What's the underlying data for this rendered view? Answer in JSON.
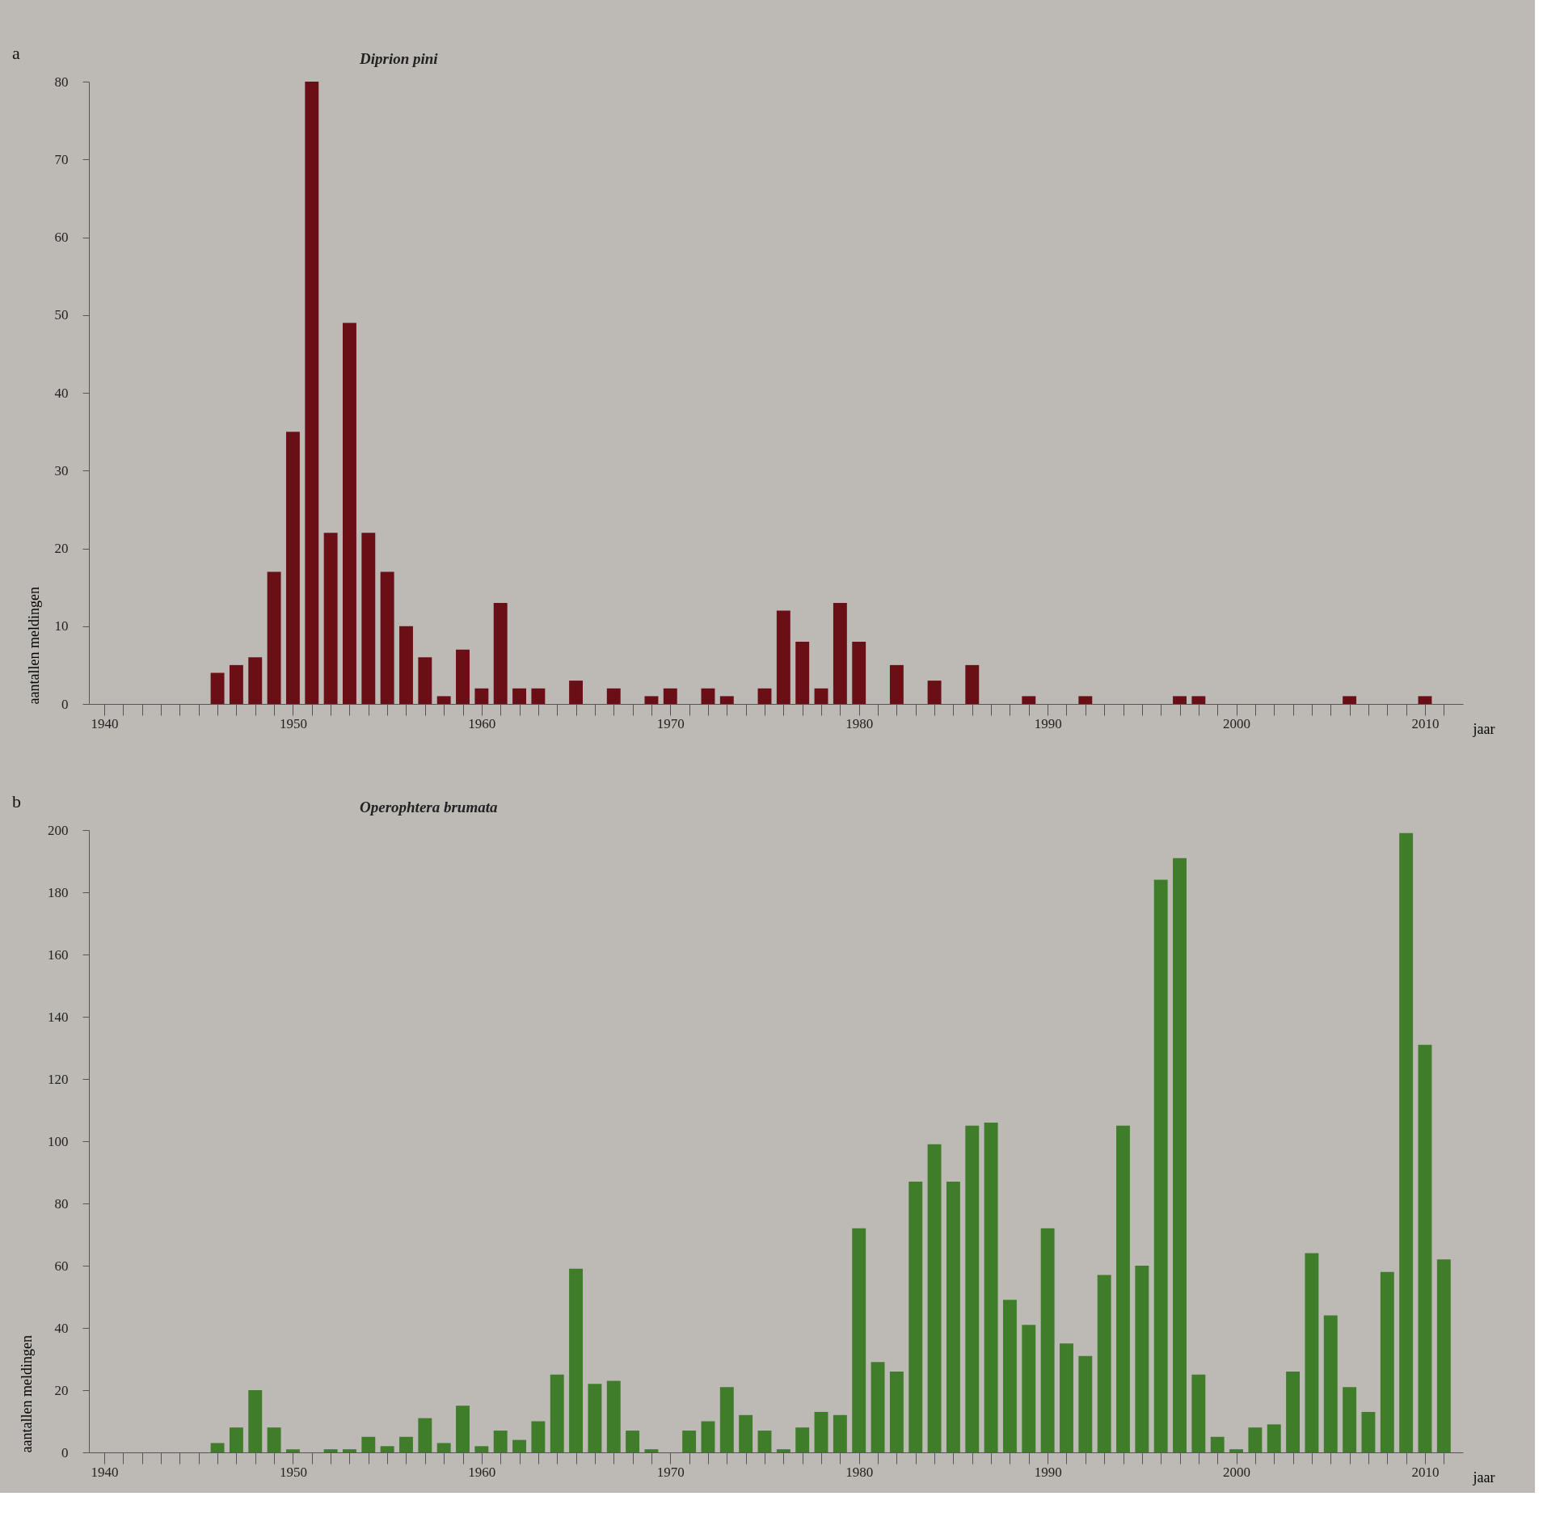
{
  "chart_data": [
    {
      "type": "bar",
      "title": "Diprion pini",
      "xlabel": "jaar",
      "ylabel": "aantallen meldingen",
      "annotations": [
        "a"
      ],
      "color": "#6b0f16",
      "grid": false,
      "x": [
        1946,
        1947,
        1948,
        1949,
        1950,
        1951,
        1952,
        1953,
        1954,
        1955,
        1956,
        1957,
        1958,
        1959,
        1960,
        1961,
        1962,
        1963,
        1965,
        1967,
        1969,
        1970,
        1972,
        1973,
        1975,
        1976,
        1977,
        1978,
        1979,
        1980,
        1982,
        1984,
        1986,
        1989,
        1992,
        1997,
        1998,
        2006,
        2010
      ],
      "values": [
        4,
        5,
        6,
        17,
        35,
        80,
        22,
        49,
        22,
        17,
        10,
        6,
        1,
        7,
        2,
        13,
        2,
        2,
        3,
        2,
        1,
        2,
        2,
        1,
        2,
        12,
        8,
        2,
        13,
        8,
        5,
        3,
        5,
        1,
        1,
        1,
        1,
        1,
        1
      ],
      "xlim": [
        1939.4,
        2011.8
      ],
      "ylim": [
        0,
        80
      ],
      "yticks": [
        0,
        10,
        20,
        30,
        40,
        50,
        60,
        70,
        80
      ],
      "xticks": [
        1940,
        {
          "value": 1941,
          "label": null
        },
        {
          "value": 1942,
          "label": null
        },
        {
          "value": 1943,
          "label": null
        },
        {
          "value": 1944,
          "label": null
        },
        {
          "value": 1945,
          "label": null
        },
        {
          "value": 1946,
          "label": null
        },
        {
          "value": 1947,
          "label": null
        },
        {
          "value": 1948,
          "label": null
        },
        {
          "value": 1949,
          "label": null
        },
        1950,
        {
          "value": 1951,
          "label": null
        },
        {
          "value": 1952,
          "label": null
        },
        {
          "value": 1953,
          "label": null
        },
        {
          "value": 1954,
          "label": null
        },
        {
          "value": 1955,
          "label": null
        },
        {
          "value": 1956,
          "label": null
        },
        {
          "value": 1957,
          "label": null
        },
        {
          "value": 1958,
          "label": null
        },
        {
          "value": 1959,
          "label": null
        },
        1960,
        {
          "value": 1961,
          "label": null
        },
        {
          "value": 1962,
          "label": null
        },
        {
          "value": 1963,
          "label": null
        },
        {
          "value": 1964,
          "label": null
        },
        {
          "value": 1965,
          "label": null
        },
        {
          "value": 1966,
          "label": null
        },
        {
          "value": 1967,
          "label": null
        },
        {
          "value": 1968,
          "label": null
        },
        {
          "value": 1969,
          "label": null
        },
        1970,
        {
          "value": 1971,
          "label": null
        },
        {
          "value": 1972,
          "label": null
        },
        {
          "value": 1973,
          "label": null
        },
        {
          "value": 1974,
          "label": null
        },
        {
          "value": 1975,
          "label": null
        },
        {
          "value": 1976,
          "label": null
        },
        {
          "value": 1977,
          "label": null
        },
        {
          "value": 1978,
          "label": null
        },
        {
          "value": 1979,
          "label": null
        },
        1980,
        {
          "value": 1981,
          "label": null
        },
        {
          "value": 1982,
          "label": null
        },
        {
          "value": 1983,
          "label": null
        },
        {
          "value": 1984,
          "label": null
        },
        {
          "value": 1985,
          "label": null
        },
        {
          "value": 1986,
          "label": null
        },
        {
          "value": 1987,
          "label": null
        },
        {
          "value": 1988,
          "label": null
        },
        {
          "value": 1989,
          "label": null
        },
        1990,
        {
          "value": 1991,
          "label": null
        },
        {
          "value": 1992,
          "label": null
        },
        {
          "value": 1993,
          "label": null
        },
        {
          "value": 1994,
          "label": null
        },
        {
          "value": 1995,
          "label": null
        },
        {
          "value": 1996,
          "label": null
        },
        {
          "value": 1997,
          "label": null
        },
        {
          "value": 1998,
          "label": null
        },
        {
          "value": 1999,
          "label": null
        },
        2000,
        {
          "value": 2001,
          "label": null
        },
        {
          "value": 2002,
          "label": null
        },
        {
          "value": 2003,
          "label": null
        },
        {
          "value": 2004,
          "label": null
        },
        {
          "value": 2005,
          "label": null
        },
        {
          "value": 2006,
          "label": null
        },
        {
          "value": 2007,
          "label": null
        },
        {
          "value": 2008,
          "label": null
        },
        {
          "value": 2009,
          "label": null
        },
        2010,
        {
          "value": 2011,
          "label": null
        }
      ]
    },
    {
      "type": "bar",
      "title": "Operophtera brumata",
      "xlabel": "jaar",
      "ylabel": "aantallen meldingen",
      "annotations": [
        "b"
      ],
      "color": "#3f7d2a",
      "grid": false,
      "x": [
        1946,
        1947,
        1948,
        1949,
        1950,
        1952,
        1953,
        1954,
        1955,
        1956,
        1957,
        1958,
        1959,
        1960,
        1961,
        1962,
        1963,
        1964,
        1965,
        1966,
        1967,
        1968,
        1969,
        1971,
        1972,
        1973,
        1974,
        1975,
        1976,
        1977,
        1978,
        1979,
        1980,
        1981,
        1982,
        1983,
        1984,
        1985,
        1986,
        1987,
        1988,
        1989,
        1990,
        1991,
        1992,
        1993,
        1994,
        1995,
        1996,
        1997,
        1998,
        1999,
        2000,
        2001,
        2002,
        2003,
        2004,
        2005,
        2006,
        2007,
        2008,
        2009,
        2010,
        2011
      ],
      "values": [
        3,
        8,
        20,
        8,
        1,
        1,
        1,
        5,
        2,
        5,
        11,
        3,
        15,
        2,
        7,
        4,
        10,
        25,
        59,
        22,
        23,
        7,
        1,
        7,
        10,
        21,
        12,
        7,
        1,
        8,
        13,
        12,
        72,
        29,
        26,
        87,
        99,
        87,
        105,
        106,
        49,
        41,
        72,
        35,
        31,
        57,
        105,
        60,
        184,
        191,
        25,
        5,
        1,
        8,
        9,
        26,
        64,
        44,
        21,
        13,
        58,
        199,
        131,
        62
      ],
      "xlim": [
        1939.4,
        2011.8
      ],
      "ylim": [
        0,
        200
      ],
      "yticks": [
        0,
        20,
        40,
        60,
        80,
        100,
        120,
        140,
        160,
        180,
        200
      ],
      "xticks": [
        1940,
        {
          "value": 1941,
          "label": null
        },
        {
          "value": 1942,
          "label": null
        },
        {
          "value": 1943,
          "label": null
        },
        {
          "value": 1944,
          "label": null
        },
        {
          "value": 1945,
          "label": null
        },
        {
          "value": 1946,
          "label": null
        },
        {
          "value": 1947,
          "label": null
        },
        {
          "value": 1948,
          "label": null
        },
        {
          "value": 1949,
          "label": null
        },
        1950,
        {
          "value": 1951,
          "label": null
        },
        {
          "value": 1952,
          "label": null
        },
        {
          "value": 1953,
          "label": null
        },
        {
          "value": 1954,
          "label": null
        },
        {
          "value": 1955,
          "label": null
        },
        {
          "value": 1956,
          "label": null
        },
        {
          "value": 1957,
          "label": null
        },
        {
          "value": 1958,
          "label": null
        },
        {
          "value": 1959,
          "label": null
        },
        1960,
        {
          "value": 1961,
          "label": null
        },
        {
          "value": 1962,
          "label": null
        },
        {
          "value": 1963,
          "label": null
        },
        {
          "value": 1964,
          "label": null
        },
        {
          "value": 1965,
          "label": null
        },
        {
          "value": 1966,
          "label": null
        },
        {
          "value": 1967,
          "label": null
        },
        {
          "value": 1968,
          "label": null
        },
        {
          "value": 1969,
          "label": null
        },
        1970,
        {
          "value": 1971,
          "label": null
        },
        {
          "value": 1972,
          "label": null
        },
        {
          "value": 1973,
          "label": null
        },
        {
          "value": 1974,
          "label": null
        },
        {
          "value": 1975,
          "label": null
        },
        {
          "value": 1976,
          "label": null
        },
        {
          "value": 1977,
          "label": null
        },
        {
          "value": 1978,
          "label": null
        },
        {
          "value": 1979,
          "label": null
        },
        1980,
        {
          "value": 1981,
          "label": null
        },
        {
          "value": 1982,
          "label": null
        },
        {
          "value": 1983,
          "label": null
        },
        {
          "value": 1984,
          "label": null
        },
        {
          "value": 1985,
          "label": null
        },
        {
          "value": 1986,
          "label": null
        },
        {
          "value": 1987,
          "label": null
        },
        {
          "value": 1988,
          "label": null
        },
        {
          "value": 1989,
          "label": null
        },
        1990,
        {
          "value": 1991,
          "label": null
        },
        {
          "value": 1992,
          "label": null
        },
        {
          "value": 1993,
          "label": null
        },
        {
          "value": 1994,
          "label": null
        },
        {
          "value": 1995,
          "label": null
        },
        {
          "value": 1996,
          "label": null
        },
        {
          "value": 1997,
          "label": null
        },
        {
          "value": 1998,
          "label": null
        },
        {
          "value": 1999,
          "label": null
        },
        2000,
        {
          "value": 2001,
          "label": null
        },
        {
          "value": 2002,
          "label": null
        },
        {
          "value": 2003,
          "label": null
        },
        {
          "value": 2004,
          "label": null
        },
        {
          "value": 2005,
          "label": null
        },
        {
          "value": 2006,
          "label": null
        },
        {
          "value": 2007,
          "label": null
        },
        {
          "value": 2008,
          "label": null
        },
        {
          "value": 2009,
          "label": null
        },
        2010,
        {
          "value": 2011,
          "label": null
        }
      ]
    }
  ]
}
